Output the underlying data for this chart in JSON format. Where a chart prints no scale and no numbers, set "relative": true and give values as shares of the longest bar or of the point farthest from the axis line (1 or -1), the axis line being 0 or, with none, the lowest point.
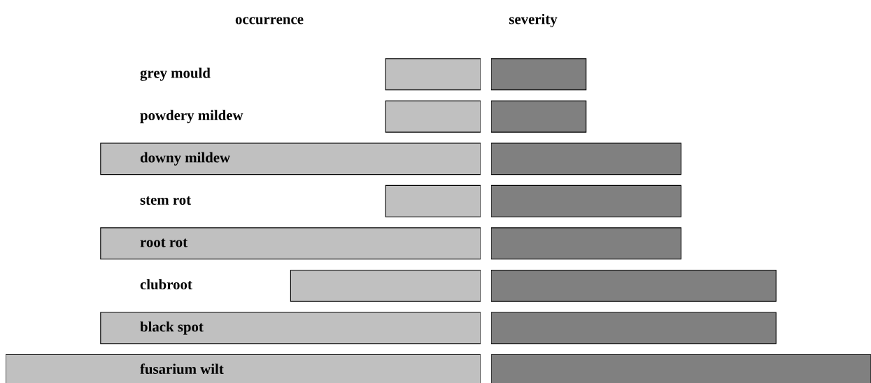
{
  "chart_data": [
    {
      "type": "bar",
      "orientation": "horizontal",
      "relative": true,
      "title": "occurrence",
      "categories": [
        "grey mould",
        "powdery mildew",
        "downy mildew",
        "stem rot",
        "root rot",
        "clubroot",
        "black spot",
        "fusarium wilt"
      ],
      "values": [
        0.2,
        0.2,
        0.8,
        0.2,
        0.8,
        0.4,
        0.8,
        1.0
      ],
      "color": "#c0c0c0"
    },
    {
      "type": "bar",
      "orientation": "horizontal",
      "relative": true,
      "title": "severity",
      "categories": [
        null,
        null,
        null,
        null,
        null,
        null,
        null,
        null
      ],
      "values": [
        0.25,
        0.25,
        0.5,
        0.5,
        0.5,
        0.75,
        0.75,
        1.0
      ],
      "color": "#808080"
    }
  ]
}
